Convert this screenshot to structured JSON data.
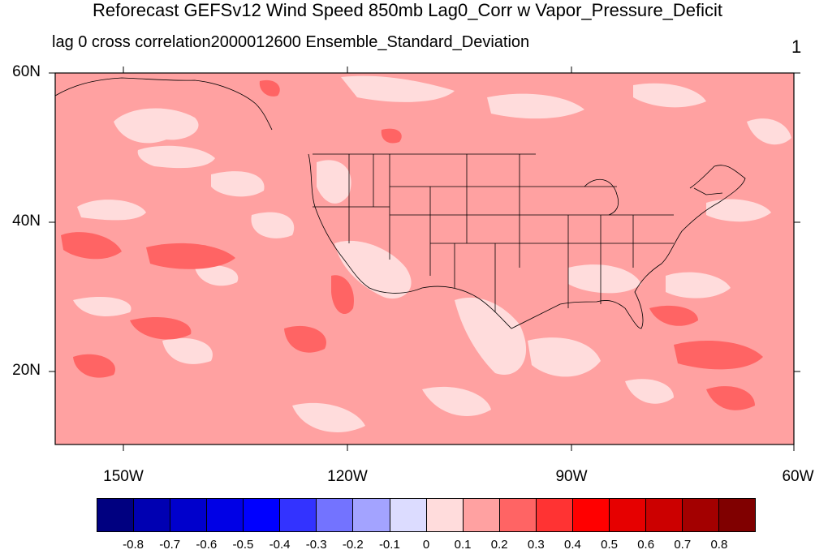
{
  "title": "Reforecast GEFSv12 Wind Speed 850mb Lag0_Corr w Vapor_Pressure_Deficit",
  "subtitle": "lag 0 cross correlation2000012600 Ensemble_Standard_Deviation",
  "right_label": "1",
  "map": {
    "lat_labels": [
      "60N",
      "40N",
      "20N"
    ],
    "lon_labels": [
      "150W",
      "120W",
      "90W",
      "60W"
    ],
    "extent": {
      "lon_min": -160,
      "lon_max": -61,
      "lat_min": 10,
      "lat_max": 60
    },
    "dominant_value_bin": "0.1 to 0.2",
    "colors": {
      "bg": "#ffa1a1",
      "light": "#ffdcdc",
      "mid": "#ff6464",
      "coast": "#000000"
    }
  },
  "colorbar": {
    "labels": [
      "-0.8",
      "-0.7",
      "-0.6",
      "-0.5",
      "-0.4",
      "-0.3",
      "-0.2",
      "-0.1",
      "0",
      "0.1",
      "0.2",
      "0.3",
      "0.4",
      "0.5",
      "0.6",
      "0.7",
      "0.8"
    ],
    "colors": [
      "#000080",
      "#0000b2",
      "#0000cc",
      "#0000e6",
      "#0000ff",
      "#3333ff",
      "#7373ff",
      "#a3a3ff",
      "#dcdcff",
      "#ffdcdc",
      "#ffa1a1",
      "#ff6464",
      "#ff3333",
      "#ff0000",
      "#e60000",
      "#cc0000",
      "#a30000",
      "#800000"
    ]
  }
}
